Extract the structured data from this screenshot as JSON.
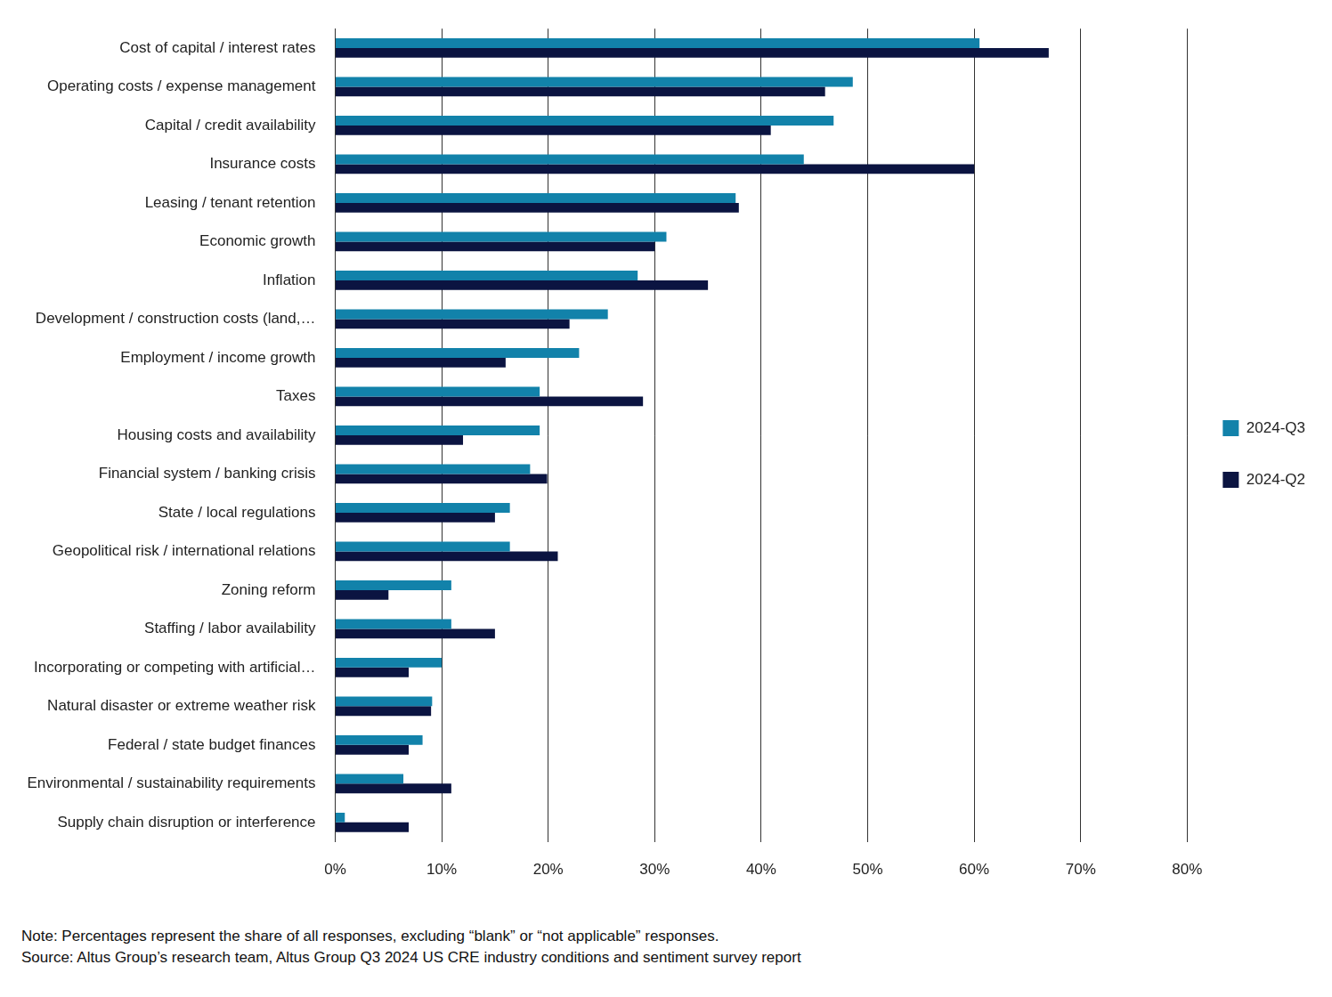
{
  "chart_data": {
    "type": "bar",
    "orientation": "horizontal",
    "categories": [
      "Cost of capital / interest rates",
      "Operating costs / expense management",
      "Capital / credit availability",
      "Insurance costs",
      "Leasing / tenant retention",
      "Economic growth",
      "Inflation",
      "Development / construction costs (land,…",
      "Employment / income growth",
      "Taxes",
      "Housing costs and availability",
      "Financial system / banking crisis",
      "State / local regulations",
      "Geopolitical risk / international relations",
      "Zoning reform",
      "Staffing / labor availability",
      "Incorporating or competing with artificial…",
      "Natural disaster or extreme weather risk",
      "Federal / state budget finances",
      "Environmental / sustainability requirements",
      "Supply chain disruption or interference"
    ],
    "series": [
      {
        "name": "2024-Q3",
        "color": "#1282aa",
        "values": [
          60.5,
          48.6,
          46.8,
          44.0,
          37.6,
          31.1,
          28.4,
          25.6,
          22.9,
          19.2,
          19.2,
          18.3,
          16.4,
          16.4,
          10.9,
          10.9,
          10.0,
          9.1,
          8.2,
          6.4,
          0.9
        ]
      },
      {
        "name": "2024-Q2",
        "color": "#0b1441",
        "values": [
          67.0,
          46.0,
          40.9,
          60.0,
          37.9,
          30.0,
          35.0,
          22.0,
          16.0,
          28.9,
          12.0,
          19.9,
          15.0,
          20.9,
          5.0,
          15.0,
          6.9,
          9.0,
          6.9,
          10.9,
          6.9
        ]
      }
    ],
    "xlim": [
      0,
      80
    ],
    "xticks": [
      {
        "value": 0,
        "label": "0%"
      },
      {
        "value": 10,
        "label": "10%"
      },
      {
        "value": 20,
        "label": "20%"
      },
      {
        "value": 30,
        "label": "30%"
      },
      {
        "value": 40,
        "label": "40%"
      },
      {
        "value": 50,
        "label": "50%"
      },
      {
        "value": 60,
        "label": "60%"
      },
      {
        "value": 70,
        "label": "70%"
      },
      {
        "value": 80,
        "label": "80%"
      }
    ],
    "grid": true,
    "legend": "right",
    "annotations": [
      "Note: Percentages represent the share of all responses, excluding “blank” or “not applicable” responses.",
      "Source: Altus Group’s research team, Altus Group Q3 2024 US CRE industry conditions and sentiment survey report"
    ]
  }
}
